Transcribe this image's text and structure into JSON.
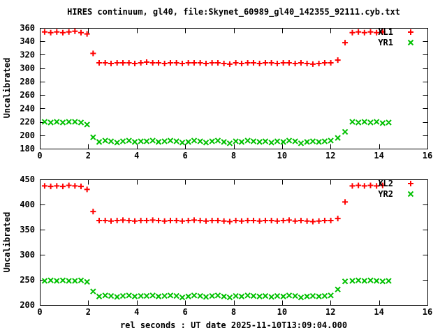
{
  "title": "HIRES continuum, gl40, file:Skynet_60989_gl40_142355_92111.cyb.txt",
  "xlabel": "rel seconds : UT date 2025-11-10T13:09:04.000",
  "colors": {
    "red": "#ff0000",
    "green": "#00c000",
    "axis": "#000000",
    "background": "#ffffff"
  },
  "chart_data": [
    {
      "type": "scatter",
      "ylabel": "Uncalibrated",
      "xlim": [
        0,
        16
      ],
      "ylim": [
        180,
        360
      ],
      "xticks": [
        0,
        2,
        4,
        6,
        8,
        10,
        12,
        14,
        16
      ],
      "yticks": [
        180,
        200,
        220,
        240,
        260,
        280,
        300,
        320,
        340,
        360
      ],
      "grid": false,
      "legend_position": "top-right",
      "series": [
        {
          "name": "XL1",
          "marker": "plus",
          "color": "#ff0000",
          "points": [
            [
              0.2,
              354
            ],
            [
              0.45,
              353
            ],
            [
              0.7,
              354
            ],
            [
              0.95,
              353
            ],
            [
              1.2,
              354
            ],
            [
              1.45,
              355
            ],
            [
              1.7,
              353
            ],
            [
              1.95,
              351
            ],
            [
              2.2,
              322
            ],
            [
              2.45,
              308
            ],
            [
              2.7,
              308
            ],
            [
              2.94,
              307
            ],
            [
              3.19,
              308
            ],
            [
              3.43,
              308
            ],
            [
              3.68,
              308
            ],
            [
              3.92,
              307
            ],
            [
              4.17,
              308
            ],
            [
              4.41,
              309
            ],
            [
              4.66,
              308
            ],
            [
              4.9,
              308
            ],
            [
              5.15,
              307
            ],
            [
              5.39,
              308
            ],
            [
              5.64,
              308
            ],
            [
              5.88,
              307
            ],
            [
              6.13,
              308
            ],
            [
              6.37,
              308
            ],
            [
              6.62,
              308
            ],
            [
              6.86,
              307
            ],
            [
              7.11,
              308
            ],
            [
              7.35,
              308
            ],
            [
              7.6,
              307
            ],
            [
              7.84,
              306
            ],
            [
              8.09,
              308
            ],
            [
              8.33,
              307
            ],
            [
              8.58,
              308
            ],
            [
              8.82,
              308
            ],
            [
              9.07,
              307
            ],
            [
              9.31,
              308
            ],
            [
              9.56,
              308
            ],
            [
              9.8,
              307
            ],
            [
              10.05,
              308
            ],
            [
              10.29,
              308
            ],
            [
              10.54,
              307
            ],
            [
              10.78,
              308
            ],
            [
              11.03,
              307
            ],
            [
              11.27,
              306
            ],
            [
              11.52,
              307
            ],
            [
              11.76,
              308
            ],
            [
              12.01,
              308
            ],
            [
              12.3,
              312
            ],
            [
              12.6,
              338
            ],
            [
              12.9,
              353
            ],
            [
              13.15,
              354
            ],
            [
              13.4,
              353
            ],
            [
              13.65,
              354
            ],
            [
              13.9,
              353
            ],
            [
              14.15,
              354
            ]
          ]
        },
        {
          "name": "YR1",
          "marker": "cross",
          "color": "#00c000",
          "points": [
            [
              0.2,
              220
            ],
            [
              0.45,
              219
            ],
            [
              0.7,
              220
            ],
            [
              0.95,
              219
            ],
            [
              1.2,
              220
            ],
            [
              1.45,
              220
            ],
            [
              1.7,
              219
            ],
            [
              1.95,
              216
            ],
            [
              2.2,
              197
            ],
            [
              2.45,
              190
            ],
            [
              2.7,
              192
            ],
            [
              2.94,
              191
            ],
            [
              3.19,
              189
            ],
            [
              3.43,
              191
            ],
            [
              3.68,
              192
            ],
            [
              3.92,
              190
            ],
            [
              4.17,
              191
            ],
            [
              4.41,
              191
            ],
            [
              4.66,
              192
            ],
            [
              4.9,
              190
            ],
            [
              5.15,
              191
            ],
            [
              5.39,
              192
            ],
            [
              5.64,
              191
            ],
            [
              5.88,
              189
            ],
            [
              6.13,
              190
            ],
            [
              6.37,
              192
            ],
            [
              6.62,
              191
            ],
            [
              6.86,
              189
            ],
            [
              7.11,
              191
            ],
            [
              7.35,
              192
            ],
            [
              7.6,
              190
            ],
            [
              7.84,
              188
            ],
            [
              8.09,
              191
            ],
            [
              8.33,
              190
            ],
            [
              8.58,
              192
            ],
            [
              8.82,
              191
            ],
            [
              9.07,
              190
            ],
            [
              9.31,
              191
            ],
            [
              9.56,
              189
            ],
            [
              9.8,
              191
            ],
            [
              10.05,
              190
            ],
            [
              10.29,
              192
            ],
            [
              10.54,
              191
            ],
            [
              10.78,
              188
            ],
            [
              11.03,
              190
            ],
            [
              11.27,
              191
            ],
            [
              11.52,
              190
            ],
            [
              11.76,
              191
            ],
            [
              12.01,
              192
            ],
            [
              12.3,
              196
            ],
            [
              12.6,
              205
            ],
            [
              12.9,
              220
            ],
            [
              13.15,
              219
            ],
            [
              13.4,
              220
            ],
            [
              13.65,
              219
            ],
            [
              13.9,
              220
            ],
            [
              14.15,
              218
            ],
            [
              14.4,
              219
            ]
          ]
        }
      ]
    },
    {
      "type": "scatter",
      "ylabel": "Uncalibrated",
      "xlim": [
        0,
        16
      ],
      "ylim": [
        200,
        450
      ],
      "xticks": [
        0,
        2,
        4,
        6,
        8,
        10,
        12,
        14,
        16
      ],
      "yticks": [
        200,
        250,
        300,
        350,
        400,
        450
      ],
      "grid": false,
      "legend_position": "top-right",
      "series": [
        {
          "name": "XL2",
          "marker": "plus",
          "color": "#ff0000",
          "points": [
            [
              0.2,
              437
            ],
            [
              0.45,
              436
            ],
            [
              0.7,
              437
            ],
            [
              0.95,
              436
            ],
            [
              1.2,
              438
            ],
            [
              1.45,
              437
            ],
            [
              1.7,
              436
            ],
            [
              1.95,
              430
            ],
            [
              2.2,
              386
            ],
            [
              2.45,
              368
            ],
            [
              2.7,
              368
            ],
            [
              2.94,
              367
            ],
            [
              3.19,
              368
            ],
            [
              3.43,
              369
            ],
            [
              3.68,
              368
            ],
            [
              3.92,
              367
            ],
            [
              4.17,
              368
            ],
            [
              4.41,
              368
            ],
            [
              4.66,
              369
            ],
            [
              4.9,
              368
            ],
            [
              5.15,
              367
            ],
            [
              5.39,
              368
            ],
            [
              5.64,
              368
            ],
            [
              5.88,
              367
            ],
            [
              6.13,
              368
            ],
            [
              6.37,
              369
            ],
            [
              6.62,
              368
            ],
            [
              6.86,
              367
            ],
            [
              7.11,
              368
            ],
            [
              7.35,
              368
            ],
            [
              7.6,
              367
            ],
            [
              7.84,
              366
            ],
            [
              8.09,
              368
            ],
            [
              8.33,
              367
            ],
            [
              8.58,
              368
            ],
            [
              8.82,
              368
            ],
            [
              9.07,
              367
            ],
            [
              9.31,
              368
            ],
            [
              9.56,
              368
            ],
            [
              9.8,
              367
            ],
            [
              10.05,
              368
            ],
            [
              10.29,
              369
            ],
            [
              10.54,
              367
            ],
            [
              10.78,
              368
            ],
            [
              11.03,
              367
            ],
            [
              11.27,
              366
            ],
            [
              11.52,
              367
            ],
            [
              11.76,
              368
            ],
            [
              12.01,
              368
            ],
            [
              12.3,
              372
            ],
            [
              12.6,
              405
            ],
            [
              12.9,
              437
            ],
            [
              13.15,
              438
            ],
            [
              13.4,
              437
            ],
            [
              13.65,
              438
            ],
            [
              13.9,
              437
            ],
            [
              14.15,
              438
            ]
          ]
        },
        {
          "name": "YR2",
          "marker": "cross",
          "color": "#00c000",
          "points": [
            [
              0.2,
              248
            ],
            [
              0.45,
              249
            ],
            [
              0.7,
              248
            ],
            [
              0.95,
              249
            ],
            [
              1.2,
              248
            ],
            [
              1.45,
              248
            ],
            [
              1.7,
              249
            ],
            [
              1.95,
              246
            ],
            [
              2.2,
              227
            ],
            [
              2.45,
              217
            ],
            [
              2.7,
              219
            ],
            [
              2.94,
              218
            ],
            [
              3.19,
              216
            ],
            [
              3.43,
              218
            ],
            [
              3.68,
              219
            ],
            [
              3.92,
              217
            ],
            [
              4.17,
              218
            ],
            [
              4.41,
              218
            ],
            [
              4.66,
              219
            ],
            [
              4.9,
              217
            ],
            [
              5.15,
              218
            ],
            [
              5.39,
              219
            ],
            [
              5.64,
              218
            ],
            [
              5.88,
              215
            ],
            [
              6.13,
              217
            ],
            [
              6.37,
              219
            ],
            [
              6.62,
              218
            ],
            [
              6.86,
              216
            ],
            [
              7.11,
              218
            ],
            [
              7.35,
              219
            ],
            [
              7.6,
              217
            ],
            [
              7.84,
              215
            ],
            [
              8.09,
              218
            ],
            [
              8.33,
              217
            ],
            [
              8.58,
              219
            ],
            [
              8.82,
              218
            ],
            [
              9.07,
              217
            ],
            [
              9.31,
              218
            ],
            [
              9.56,
              216
            ],
            [
              9.8,
              218
            ],
            [
              10.05,
              217
            ],
            [
              10.29,
              219
            ],
            [
              10.54,
              218
            ],
            [
              10.78,
              215
            ],
            [
              11.03,
              217
            ],
            [
              11.27,
              218
            ],
            [
              11.52,
              217
            ],
            [
              11.76,
              218
            ],
            [
              12.01,
              219
            ],
            [
              12.3,
              231
            ],
            [
              12.6,
              247
            ],
            [
              12.9,
              248
            ],
            [
              13.15,
              249
            ],
            [
              13.4,
              248
            ],
            [
              13.65,
              249
            ],
            [
              13.9,
              248
            ],
            [
              14.15,
              247
            ],
            [
              14.4,
              248
            ]
          ]
        }
      ]
    }
  ]
}
